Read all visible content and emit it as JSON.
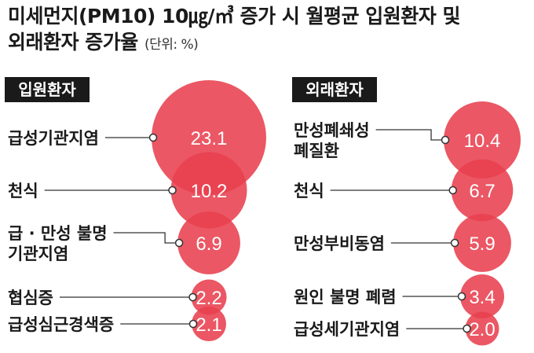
{
  "title": {
    "line1": "미세먼지(PM10) 10㎍/㎥ 증가 시 월평균 입원환자 및",
    "line2": "외래환자 증가율",
    "unit": "(단위: %)"
  },
  "chart_data": [
    {
      "type": "bubble",
      "title": "입원환자",
      "categories": [
        "급성기관지염",
        "천식",
        "급·만성 불명 기관지염",
        "협심증",
        "급성심근경색증"
      ],
      "category_lines": [
        [
          "급성기관지염"
        ],
        [
          "천식"
        ],
        [
          "급 · 만성 불명",
          "기관지염"
        ],
        [
          "협심증"
        ],
        [
          "급성심근경색증"
        ]
      ],
      "values": [
        23.1,
        10.2,
        6.9,
        2.2,
        2.1
      ],
      "value_labels": [
        "23.1",
        "10.2",
        "6.9",
        "2.2",
        "2.1"
      ]
    },
    {
      "type": "bubble",
      "title": "외래환자",
      "categories": [
        "만성폐쇄성 폐질환",
        "천식",
        "만성부비동염",
        "원인 불명 폐렴",
        "급성세기관지염"
      ],
      "category_lines": [
        [
          "만성폐쇄성",
          "폐질환"
        ],
        [
          "천식"
        ],
        [
          "만성부비동염"
        ],
        [
          "원인 불명 폐렴"
        ],
        [
          "급성세기관지염"
        ]
      ],
      "values": [
        10.4,
        6.7,
        5.9,
        3.4,
        2.0
      ],
      "value_labels": [
        "10.4",
        "6.7",
        "5.9",
        "3.4",
        "2.0"
      ]
    }
  ],
  "colors": {
    "bubble": "#e8404f",
    "badge": "#1a1a1a"
  }
}
